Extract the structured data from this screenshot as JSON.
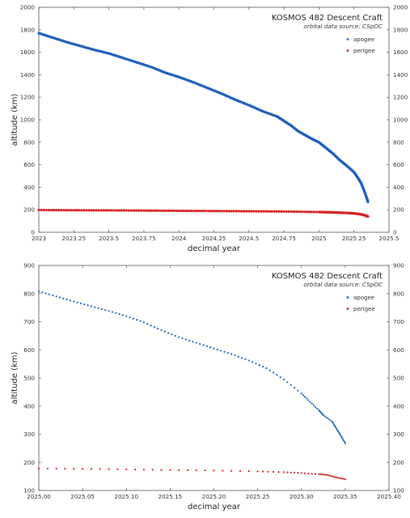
{
  "charts": [
    {
      "type": "scatter",
      "title": "KOSMOS 482 Descent Craft",
      "subtitle": "orbital data source:  CSpOC",
      "xlabel": "decimal year",
      "ylabel": "altitude (km)",
      "xlim": [
        2023,
        2025.5
      ],
      "ylim": [
        0,
        2000
      ],
      "xticks": [
        "2023",
        "2023.25",
        "2023.5",
        "2023.75",
        "2024",
        "2024.25",
        "2024.5",
        "2024.75",
        "2025",
        "2025.25",
        "2025.5"
      ],
      "yticks": [
        "0",
        "200",
        "400",
        "600",
        "800",
        "1000",
        "1200",
        "1400",
        "1600",
        "1800",
        "2000"
      ],
      "right_axis": true,
      "grid": false,
      "legend_position": "top-right",
      "colors": {
        "apogee": "#1f5fbf",
        "perigee": "#d42020"
      },
      "series": [
        {
          "name": "apogee",
          "x": [
            2023.0,
            2023.1,
            2023.2,
            2023.3,
            2023.4,
            2023.5,
            2023.6,
            2023.7,
            2023.8,
            2023.9,
            2024.0,
            2024.1,
            2024.2,
            2024.3,
            2024.4,
            2024.5,
            2024.6,
            2024.7,
            2024.75,
            2024.8,
            2024.85,
            2024.9,
            2024.95,
            2025.0,
            2025.05,
            2025.1,
            2025.15,
            2025.2,
            2025.25,
            2025.28,
            2025.3,
            2025.32,
            2025.34,
            2025.35
          ],
          "y": [
            1770,
            1730,
            1690,
            1655,
            1620,
            1590,
            1550,
            1510,
            1470,
            1420,
            1380,
            1335,
            1285,
            1235,
            1180,
            1130,
            1075,
            1030,
            990,
            950,
            900,
            865,
            830,
            800,
            750,
            700,
            640,
            590,
            535,
            480,
            440,
            380,
            310,
            270
          ]
        },
        {
          "name": "perigee",
          "x": [
            2023.0,
            2023.25,
            2023.5,
            2023.75,
            2024.0,
            2024.25,
            2024.5,
            2024.75,
            2025.0,
            2025.1,
            2025.2,
            2025.25,
            2025.3,
            2025.33,
            2025.35
          ],
          "y": [
            198,
            196,
            195,
            193,
            191,
            189,
            187,
            185,
            180,
            177,
            172,
            168,
            160,
            150,
            140
          ]
        }
      ]
    },
    {
      "type": "scatter",
      "title": "KOSMOS 482 Descent Craft",
      "subtitle": "orbital data source:  CSpOC",
      "xlabel": "decimal year",
      "ylabel": "altitude (km)",
      "xlim": [
        2025.0,
        2025.4
      ],
      "ylim": [
        100,
        900
      ],
      "xticks": [
        "2025.00",
        "2025.05",
        "2025.10",
        "2025.15",
        "2025.20",
        "2025.25",
        "2025.30",
        "2025.35",
        "2025.40"
      ],
      "yticks": [
        "100",
        "200",
        "300",
        "400",
        "500",
        "600",
        "700",
        "800",
        "900"
      ],
      "right_axis": true,
      "grid": false,
      "legend_position": "top-right",
      "colors": {
        "apogee": "#1f5fbf",
        "perigee": "#d42020"
      },
      "series": [
        {
          "name": "apogee",
          "x": [
            2025.0,
            2025.02,
            2025.04,
            2025.06,
            2025.08,
            2025.1,
            2025.12,
            2025.14,
            2025.16,
            2025.18,
            2025.2,
            2025.22,
            2025.24,
            2025.26,
            2025.28,
            2025.3,
            2025.31,
            2025.32,
            2025.325,
            2025.335,
            2025.34,
            2025.345,
            2025.35
          ],
          "y": [
            808,
            790,
            772,
            755,
            738,
            720,
            698,
            670,
            645,
            625,
            605,
            585,
            562,
            535,
            495,
            445,
            415,
            385,
            368,
            345,
            320,
            295,
            268
          ]
        },
        {
          "name": "perigee",
          "x": [
            2025.0,
            2025.05,
            2025.1,
            2025.15,
            2025.2,
            2025.25,
            2025.28,
            2025.3,
            2025.32,
            2025.33,
            2025.34,
            2025.35
          ],
          "y": [
            178,
            177,
            175,
            173,
            171,
            168,
            165,
            162,
            158,
            155,
            146,
            140
          ]
        }
      ]
    }
  ]
}
